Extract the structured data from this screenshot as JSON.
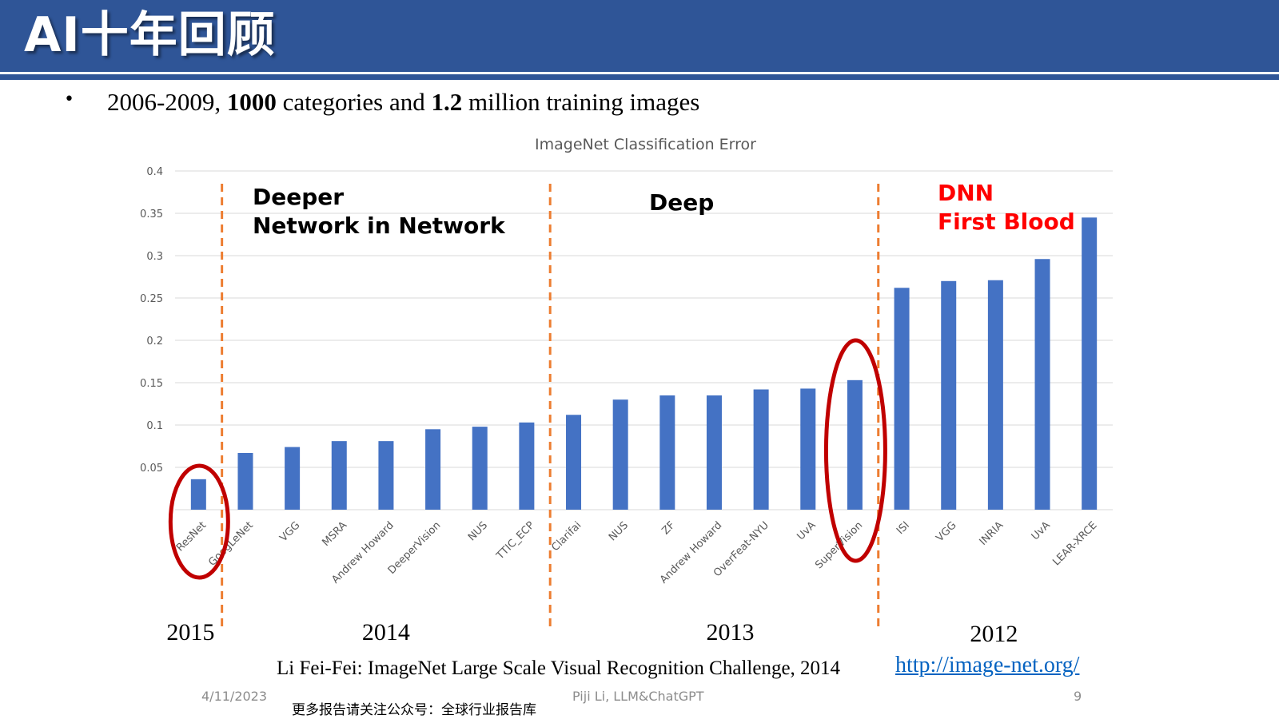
{
  "slide": {
    "title": "AI十年回顾",
    "bullet_marker": "•",
    "bullet": {
      "part1": "2006-2009, ",
      "bold1": "1000",
      "part2": " categories and ",
      "bold2": "1.2",
      "part3": " million training images"
    },
    "colors": {
      "header": "#2f5597",
      "bar": "#4472c4",
      "divider": "#ed7d31",
      "highlight": "#c00000",
      "dnn_text": "#ff0000",
      "link": "#0563c1"
    }
  },
  "chart_data": {
    "type": "bar",
    "title": "ImageNet Classification Error",
    "categories": [
      "ResNet",
      "GoogLeNet",
      "VGG",
      "MSRA",
      "Andrew Howard",
      "DeeperVision",
      "NUS",
      "TTIC_ECP",
      "Clarifai",
      "NUS",
      "ZF",
      "Andrew Howard",
      "OverFeat-NYU",
      "UvA",
      "SuperVision",
      "ISI",
      "VGG",
      "INRIA",
      "UvA",
      "LEAR-XRCE"
    ],
    "values": [
      0.036,
      0.067,
      0.074,
      0.081,
      0.081,
      0.095,
      0.098,
      0.103,
      0.112,
      0.13,
      0.135,
      0.135,
      0.142,
      0.143,
      0.153,
      0.262,
      0.27,
      0.271,
      0.296,
      0.345
    ],
    "ylim": [
      0,
      0.4
    ],
    "yticks": [
      0.05,
      0.1,
      0.15,
      0.2,
      0.25,
      0.3,
      0.35,
      0.4
    ],
    "ytick_labels": [
      "0.05",
      "0.1",
      "0.15",
      "0.2",
      "0.25",
      "0.3",
      "0.35",
      "0.4"
    ],
    "grid": true,
    "groups": [
      {
        "year": "2015",
        "first": 0,
        "last": 0
      },
      {
        "year": "2014",
        "first": 1,
        "last": 7,
        "annotation": [
          "Deeper",
          "Network in Network"
        ]
      },
      {
        "year": "2013",
        "first": 8,
        "last": 14,
        "annotation": [
          "Deep"
        ]
      },
      {
        "year": "2012",
        "first": 15,
        "last": 19,
        "annotation": [
          "DNN",
          "First Blood"
        ]
      }
    ],
    "highlighted": [
      "ResNet",
      "SuperVision"
    ]
  },
  "source": {
    "citation": "Li Fei-Fei: ImageNet Large Scale Visual Recognition Challenge, 2014",
    "link": "http://image-net.org/"
  },
  "footer": {
    "date": "4/11/2023",
    "author": "Piji Li, LLM&ChatGPT",
    "page": "9",
    "promo": "更多报告请关注公众号：全球行业报告库"
  }
}
